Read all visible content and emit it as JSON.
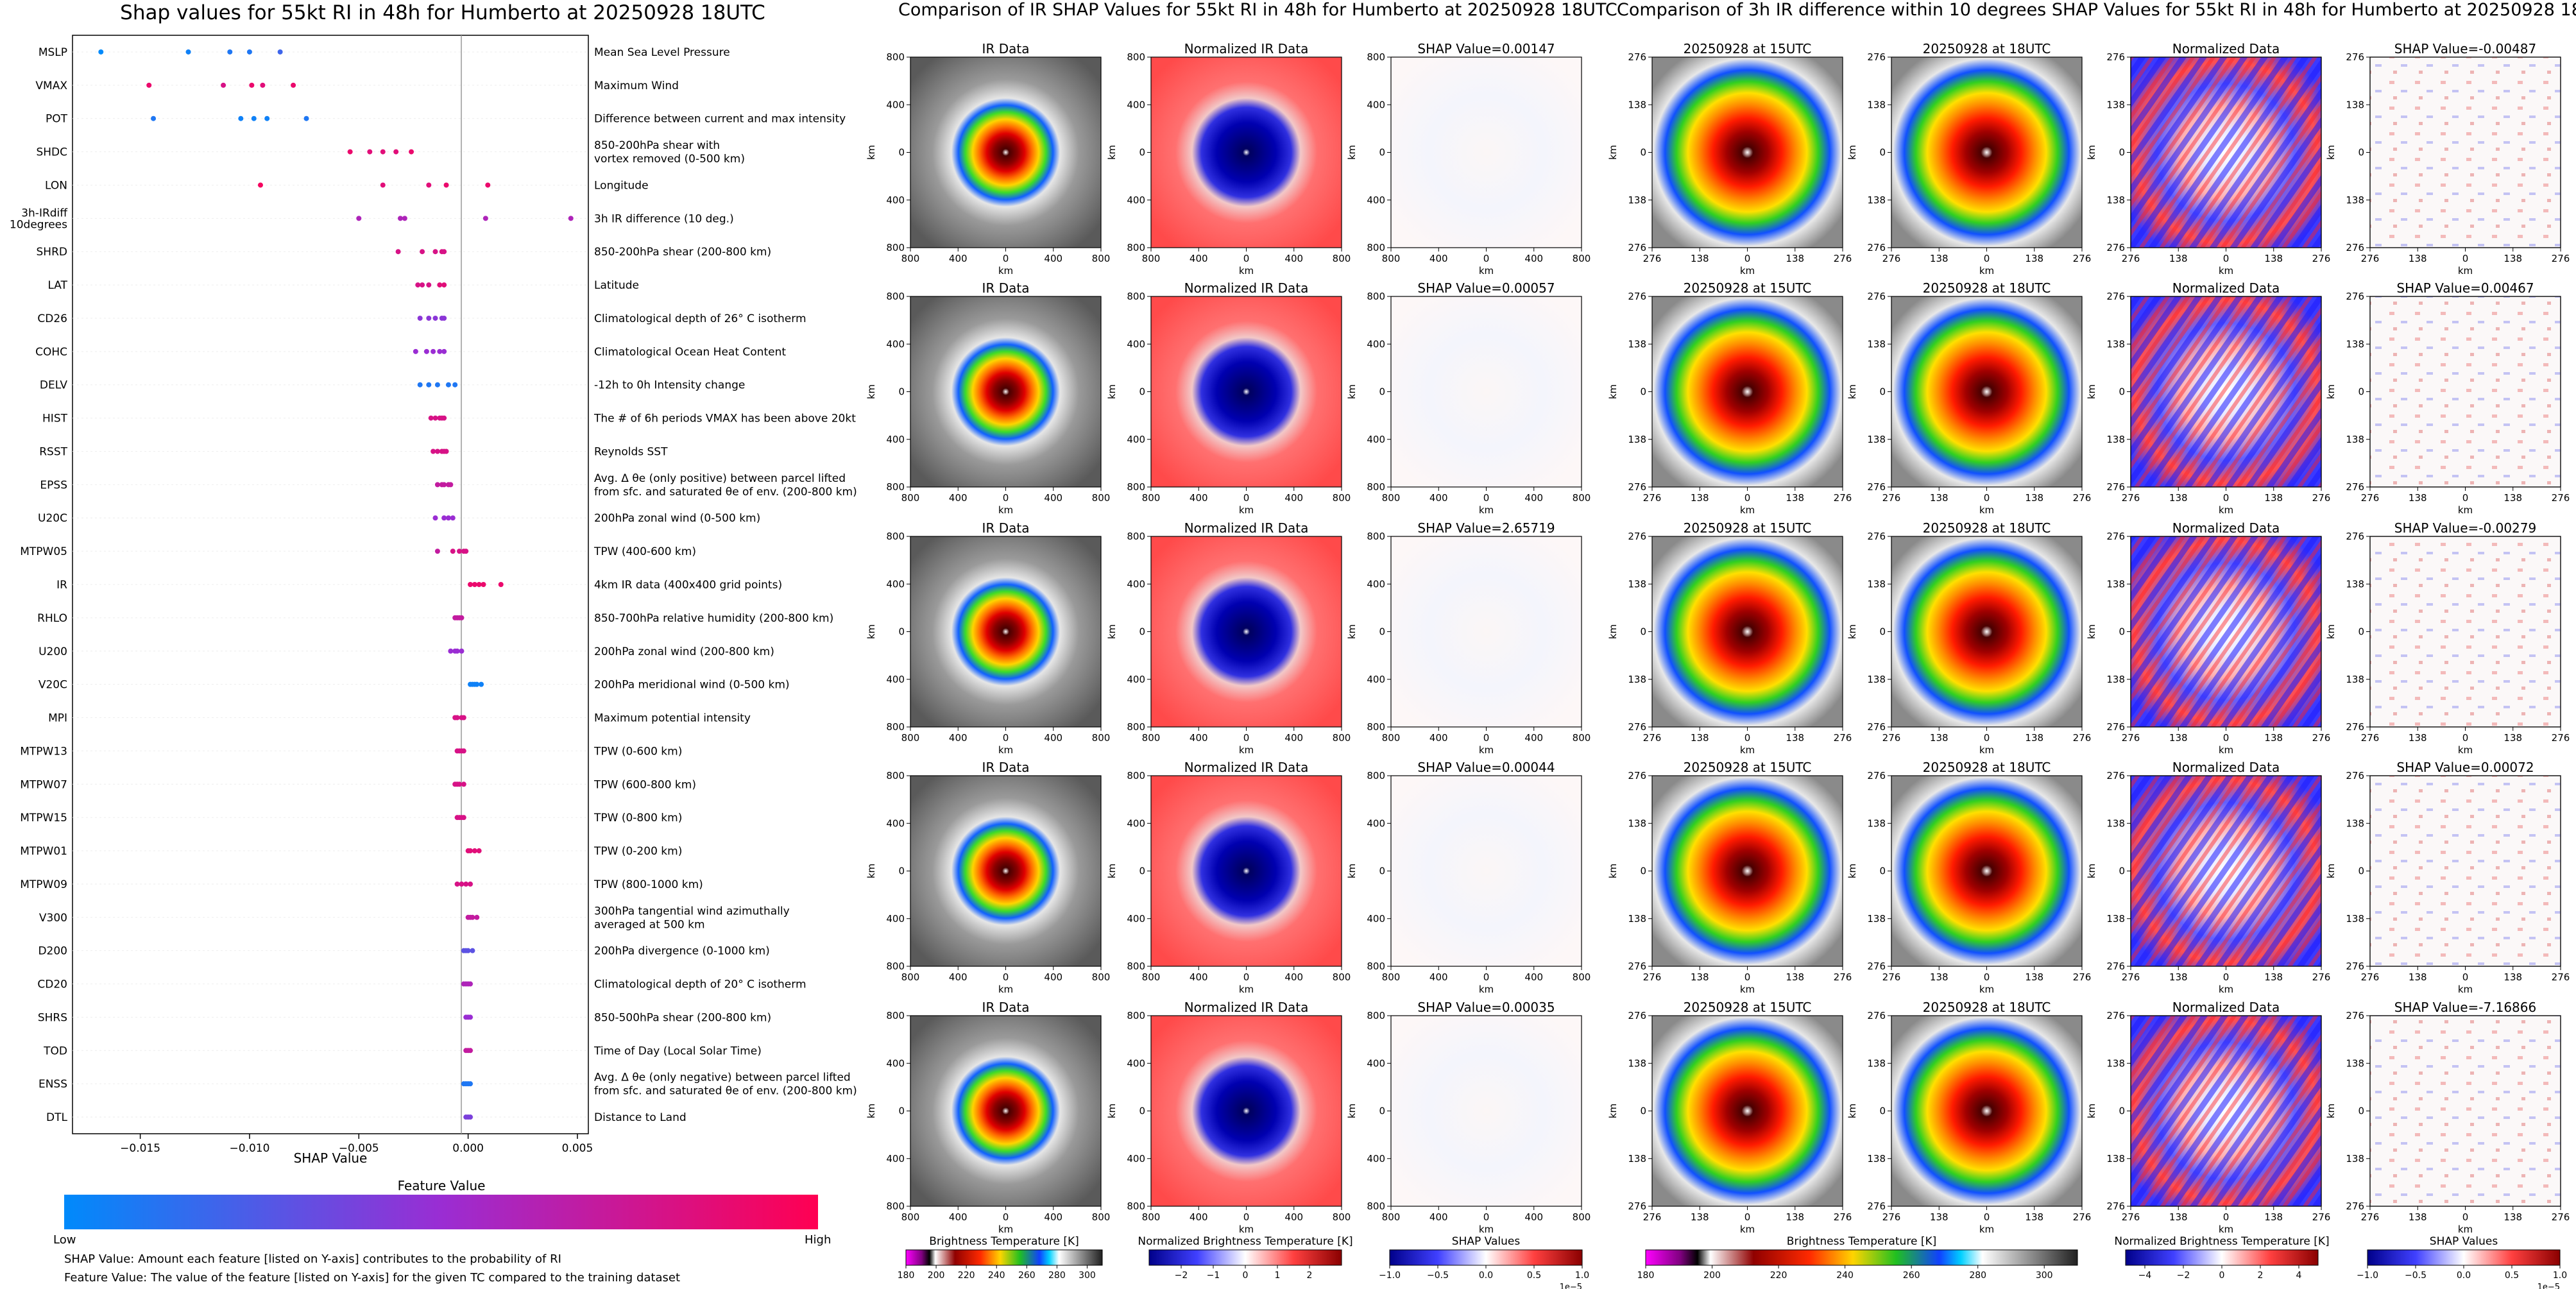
{
  "titles": {
    "shap_summary": "Shap values for 55kt RI in 48h for Humberto at 20250928 18UTC",
    "ir_comparison": "Comparison of IR SHAP Values for 55kt RI in 48h for Humberto at 20250928 18UTC",
    "diff_comparison": "Comparison of 3h IR difference within 10 degrees SHAP Values for 55kt RI in 48h for Humberto at 20250928 18UTC"
  },
  "colors": {
    "feature_low": "#008afb",
    "feature_mid": "#9a2dd3",
    "feature_high": "#ff0052",
    "zero_line": "#999999"
  },
  "chart_data": [
    {
      "type": "scatter",
      "title": "Shap values for 55kt RI in 48h for Humberto at 20250928 18UTC",
      "xlabel": "SHAP Value",
      "xlim": [
        -0.0181,
        0.0055
      ],
      "xticks": [
        -0.015,
        -0.01,
        -0.005,
        0.0,
        0.005
      ],
      "xtick_labels": [
        "−0.015",
        "−0.010",
        "−0.005",
        "0.000",
        "0.005"
      ],
      "colorbar": {
        "title": "Feature Value",
        "low_label": "Low",
        "high_label": "High"
      },
      "footnotes": [
        "SHAP Value: Amount each feature [listed on Y-axis] contributes to the probability of RI",
        "Feature Value: The value of the feature [listed on Y-axis] for the given TC compared to the training dataset"
      ],
      "features": [
        {
          "name": "MSLP",
          "desc": [
            "Mean Sea Level Pressure"
          ],
          "points": [
            [
              -0.0168,
              0.0
            ],
            [
              -0.0128,
              0.05
            ],
            [
              -0.0109,
              0.1
            ],
            [
              -0.01,
              0.1
            ],
            [
              -0.0086,
              0.2
            ]
          ]
        },
        {
          "name": "VMAX",
          "desc": [
            "Maximum Wind"
          ],
          "points": [
            [
              -0.0146,
              0.9
            ],
            [
              -0.0112,
              0.8
            ],
            [
              -0.0099,
              0.9
            ],
            [
              -0.0094,
              0.85
            ],
            [
              -0.008,
              0.9
            ]
          ]
        },
        {
          "name": "POT",
          "desc": [
            "Difference between current and max intensity"
          ],
          "points": [
            [
              -0.0144,
              0.1
            ],
            [
              -0.0104,
              0.05
            ],
            [
              -0.0098,
              0.05
            ],
            [
              -0.0092,
              0.05
            ],
            [
              -0.0074,
              0.1
            ]
          ]
        },
        {
          "name": "SHDC",
          "desc": [
            "850-200hPa shear with",
            "vortex removed (0-500 km)"
          ],
          "points": [
            [
              -0.0054,
              0.9
            ],
            [
              -0.0045,
              0.85
            ],
            [
              -0.0039,
              0.85
            ],
            [
              -0.0033,
              0.85
            ],
            [
              -0.0026,
              0.9
            ]
          ]
        },
        {
          "name": "LON",
          "desc": [
            "Longitude"
          ],
          "points": [
            [
              -0.0095,
              0.95
            ],
            [
              -0.0039,
              0.85
            ],
            [
              -0.0018,
              0.85
            ],
            [
              -0.001,
              0.9
            ],
            [
              0.0009,
              0.9
            ]
          ]
        },
        {
          "name": "3h-IRdiff\n10degrees",
          "desc": [
            "3h IR difference (10 deg.)"
          ],
          "points": [
            [
              -0.005,
              0.6
            ],
            [
              -0.0029,
              0.6
            ],
            [
              -0.0031,
              0.6
            ],
            [
              0.0008,
              0.6
            ],
            [
              0.0047,
              0.6
            ]
          ]
        },
        {
          "name": "SHRD",
          "desc": [
            "850-200hPa shear (200-800 km)"
          ],
          "points": [
            [
              -0.0032,
              0.8
            ],
            [
              -0.0021,
              0.8
            ],
            [
              -0.0015,
              0.8
            ],
            [
              -0.0011,
              0.8
            ],
            [
              -0.0012,
              0.8
            ]
          ]
        },
        {
          "name": "LAT",
          "desc": [
            "Latitude"
          ],
          "points": [
            [
              -0.0023,
              0.8
            ],
            [
              -0.0021,
              0.8
            ],
            [
              -0.0018,
              0.8
            ],
            [
              -0.0013,
              0.85
            ],
            [
              -0.0011,
              0.85
            ]
          ]
        },
        {
          "name": "CD26",
          "desc": [
            "Climatological depth of 26° C isotherm"
          ],
          "points": [
            [
              -0.0022,
              0.45
            ],
            [
              -0.0018,
              0.45
            ],
            [
              -0.0015,
              0.45
            ],
            [
              -0.0012,
              0.45
            ],
            [
              -0.0011,
              0.45
            ]
          ]
        },
        {
          "name": "COHC",
          "desc": [
            "Climatological Ocean Heat Content"
          ],
          "points": [
            [
              -0.0024,
              0.5
            ],
            [
              -0.0019,
              0.5
            ],
            [
              -0.0016,
              0.5
            ],
            [
              -0.0013,
              0.5
            ],
            [
              -0.0011,
              0.5
            ]
          ]
        },
        {
          "name": "DELV",
          "desc": [
            "-12h to 0h Intensity change"
          ],
          "points": [
            [
              -0.0022,
              0.1
            ],
            [
              -0.0018,
              0.1
            ],
            [
              -0.0014,
              0.1
            ],
            [
              -0.0009,
              0.1
            ],
            [
              -0.0006,
              0.1
            ]
          ]
        },
        {
          "name": "HIST",
          "desc": [
            "The # of 6h periods VMAX has been above 20kt"
          ],
          "points": [
            [
              -0.0017,
              0.8
            ],
            [
              -0.0015,
              0.8
            ],
            [
              -0.0013,
              0.8
            ],
            [
              -0.0012,
              0.8
            ],
            [
              -0.0011,
              0.8
            ]
          ]
        },
        {
          "name": "RSST",
          "desc": [
            "Reynolds SST"
          ],
          "points": [
            [
              -0.0016,
              0.8
            ],
            [
              -0.0014,
              0.8
            ],
            [
              -0.0012,
              0.8
            ],
            [
              -0.0011,
              0.8
            ],
            [
              -0.001,
              0.8
            ]
          ]
        },
        {
          "name": "EPSS",
          "desc": [
            "Avg. Δ θe (only positive) between parcel lifted",
            "from sfc. and saturated θe of env. (200-800 km)"
          ],
          "points": [
            [
              -0.0014,
              0.7
            ],
            [
              -0.0012,
              0.7
            ],
            [
              -0.0011,
              0.7
            ],
            [
              -0.0009,
              0.7
            ],
            [
              -0.0008,
              0.7
            ]
          ]
        },
        {
          "name": "U20C",
          "desc": [
            "200hPa zonal wind (0-500 km)"
          ],
          "points": [
            [
              -0.0015,
              0.5
            ],
            [
              -0.0011,
              0.5
            ],
            [
              -0.0009,
              0.5
            ],
            [
              -0.0007,
              0.5
            ]
          ]
        },
        {
          "name": "MTPW05",
          "desc": [
            "TPW (400-600 km)"
          ],
          "points": [
            [
              -0.0014,
              0.7
            ],
            [
              -0.0007,
              0.8
            ],
            [
              -0.0004,
              0.8
            ],
            [
              -0.0002,
              0.8
            ],
            [
              -0.0001,
              0.8
            ]
          ]
        },
        {
          "name": "IR",
          "desc": [
            "4km IR data (400x400 grid points)"
          ],
          "points": [
            [
              0.0001,
              0.9
            ],
            [
              0.0003,
              0.9
            ],
            [
              0.0005,
              0.9
            ],
            [
              0.0007,
              0.9
            ],
            [
              0.0015,
              0.9
            ]
          ]
        },
        {
          "name": "RHLO",
          "desc": [
            "850-700hPa relative humidity (200-800 km)"
          ],
          "points": [
            [
              -0.0006,
              0.7
            ],
            [
              -0.0005,
              0.7
            ],
            [
              -0.0004,
              0.7
            ],
            [
              -0.0003,
              0.7
            ]
          ]
        },
        {
          "name": "U200",
          "desc": [
            "200hPa zonal wind (200-800 km)"
          ],
          "points": [
            [
              -0.0008,
              0.5
            ],
            [
              -0.0006,
              0.5
            ],
            [
              -0.0005,
              0.5
            ],
            [
              -0.0003,
              0.5
            ]
          ]
        },
        {
          "name": "V20C",
          "desc": [
            "200hPa meridional wind (0-500 km)"
          ],
          "points": [
            [
              0.0001,
              0.05
            ],
            [
              0.0002,
              0.05
            ],
            [
              0.0003,
              0.05
            ],
            [
              0.0004,
              0.05
            ],
            [
              0.0006,
              0.05
            ]
          ]
        },
        {
          "name": "MPI",
          "desc": [
            "Maximum potential intensity"
          ],
          "points": [
            [
              -0.0006,
              0.8
            ],
            [
              -0.0005,
              0.8
            ],
            [
              -0.0003,
              0.8
            ],
            [
              -0.0002,
              0.8
            ]
          ]
        },
        {
          "name": "MTPW13",
          "desc": [
            "TPW (0-600 km)"
          ],
          "points": [
            [
              -0.0005,
              0.8
            ],
            [
              -0.0004,
              0.8
            ],
            [
              -0.0003,
              0.8
            ],
            [
              -0.0002,
              0.8
            ]
          ]
        },
        {
          "name": "MTPW07",
          "desc": [
            "TPW (600-800 km)"
          ],
          "points": [
            [
              -0.0006,
              0.8
            ],
            [
              -0.0005,
              0.8
            ],
            [
              -0.0004,
              0.8
            ],
            [
              -0.0002,
              0.8
            ]
          ]
        },
        {
          "name": "MTPW15",
          "desc": [
            "TPW (0-800 km)"
          ],
          "points": [
            [
              -0.0005,
              0.8
            ],
            [
              -0.0004,
              0.8
            ],
            [
              -0.0003,
              0.8
            ],
            [
              -0.0002,
              0.8
            ]
          ]
        },
        {
          "name": "MTPW01",
          "desc": [
            "TPW (0-200 km)"
          ],
          "points": [
            [
              0.0,
              0.85
            ],
            [
              0.0001,
              0.85
            ],
            [
              0.0003,
              0.85
            ],
            [
              0.0005,
              0.85
            ]
          ]
        },
        {
          "name": "MTPW09",
          "desc": [
            "TPW (800-1000 km)"
          ],
          "points": [
            [
              -0.0005,
              0.8
            ],
            [
              -0.0003,
              0.8
            ],
            [
              -0.0001,
              0.8
            ],
            [
              0.0001,
              0.8
            ]
          ]
        },
        {
          "name": "V300",
          "desc": [
            "300hPa tangential wind azimuthally",
            "averaged at 500 km"
          ],
          "points": [
            [
              0.0,
              0.7
            ],
            [
              0.0001,
              0.7
            ],
            [
              0.0002,
              0.7
            ],
            [
              0.0004,
              0.7
            ]
          ]
        },
        {
          "name": "D200",
          "desc": [
            "200hPa divergence (0-1000 km)"
          ],
          "points": [
            [
              -0.0002,
              0.3
            ],
            [
              -0.0001,
              0.3
            ],
            [
              0.0,
              0.3
            ],
            [
              0.0002,
              0.3
            ]
          ]
        },
        {
          "name": "CD20",
          "desc": [
            "Climatological depth of 20° C isotherm"
          ],
          "points": [
            [
              -0.0002,
              0.6
            ],
            [
              -0.0001,
              0.6
            ],
            [
              0.0,
              0.6
            ],
            [
              0.0001,
              0.6
            ]
          ]
        },
        {
          "name": "SHRS",
          "desc": [
            "850-500hPa shear (200-800 km)"
          ],
          "points": [
            [
              -0.0001,
              0.5
            ],
            [
              0.0,
              0.5
            ],
            [
              0.0001,
              0.5
            ]
          ]
        },
        {
          "name": "TOD",
          "desc": [
            "Time of Day (Local Solar Time)"
          ],
          "points": [
            [
              -0.0001,
              0.7
            ],
            [
              0.0,
              0.7
            ],
            [
              0.0001,
              0.7
            ]
          ]
        },
        {
          "name": "ENSS",
          "desc": [
            "Avg. Δ θe (only negative) between parcel lifted",
            "from sfc. and saturated θe of env. (200-800 km)"
          ],
          "points": [
            [
              -0.0002,
              0.1
            ],
            [
              -0.0001,
              0.1
            ],
            [
              0.0,
              0.1
            ],
            [
              0.0001,
              0.1
            ]
          ]
        },
        {
          "name": "DTL",
          "desc": [
            "Distance to Land"
          ],
          "points": [
            [
              -0.0001,
              0.4
            ],
            [
              0.0,
              0.4
            ],
            [
              0.0001,
              0.4
            ]
          ]
        }
      ]
    },
    {
      "type": "heatmap",
      "title": "Comparison of IR SHAP Values for 55kt RI in 48h for Humberto at 20250928 18UTC",
      "axis_unit": "km",
      "ticks": [
        "800",
        "400",
        "0",
        "400",
        "800"
      ],
      "columns": [
        "IR Data",
        "Normalized IR Data"
      ],
      "shap_titles": [
        "SHAP Value=0.00147",
        "SHAP Value=0.00057",
        "SHAP Value=2.65719",
        "SHAP Value=0.00044",
        "SHAP Value=0.00035"
      ],
      "colorbars": [
        {
          "label": "Brightness Temperature [K]",
          "ticks": [
            "180",
            "200",
            "220",
            "240",
            "260",
            "280",
            "300"
          ],
          "range": [
            180,
            310
          ]
        },
        {
          "label": "Normalized Brightness Temperature [K]",
          "ticks": [
            "−2",
            "−1",
            "0",
            "1",
            "2"
          ],
          "range": [
            -3,
            3
          ]
        },
        {
          "label": "SHAP Values",
          "ticks": [
            "−1.0",
            "−0.5",
            "0.0",
            "0.5",
            "1.0"
          ],
          "range": [
            -1,
            1
          ],
          "offset": "1e−5"
        }
      ]
    },
    {
      "type": "heatmap",
      "title": "Comparison of 3h IR difference within 10 degrees SHAP Values for 55kt RI in 48h for Humberto at 20250928 18UTC",
      "axis_unit": "km",
      "ticks": [
        "276",
        "138",
        "0",
        "138",
        "276"
      ],
      "columns": [
        "20250928 at 15UTC",
        "20250928 at 18UTC",
        "Normalized Data"
      ],
      "shap_titles": [
        "SHAP Value=-0.00487",
        "SHAP Value=0.00467",
        "SHAP Value=-0.00279",
        "SHAP Value=0.00072",
        "SHAP Value=-7.16866"
      ],
      "colorbars": [
        {
          "label": "Brightness Temperature [K]",
          "ticks": [
            "180",
            "200",
            "220",
            "240",
            "260",
            "280",
            "300"
          ],
          "range": [
            180,
            310
          ]
        },
        {
          "label": "Normalized Brightness Temperature [K]",
          "ticks": [
            "−4",
            "−2",
            "0",
            "2",
            "4"
          ],
          "range": [
            -5,
            5
          ]
        },
        {
          "label": "SHAP Values",
          "ticks": [
            "−1.0",
            "−0.5",
            "0.0",
            "0.5",
            "1.0"
          ],
          "range": [
            -1,
            1
          ],
          "offset": "1e−5"
        }
      ]
    }
  ]
}
